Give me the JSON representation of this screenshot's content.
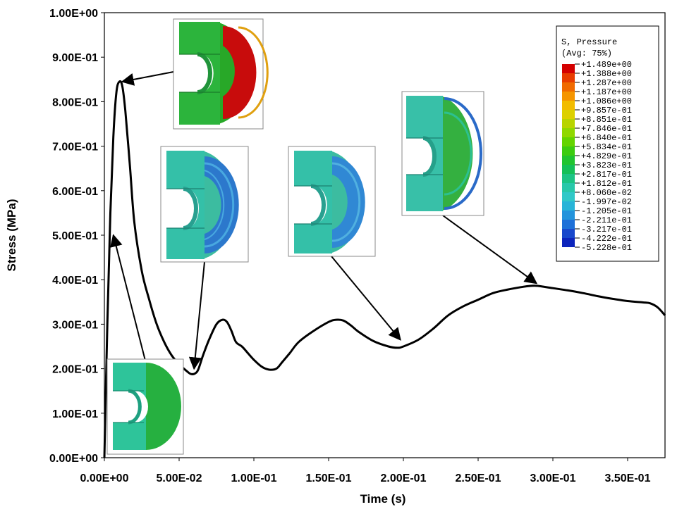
{
  "chart_data": {
    "type": "line",
    "title": "",
    "xlabel": "Time (s)",
    "ylabel": "Stress (MPa)",
    "xlim": [
      0,
      0.375
    ],
    "ylim": [
      0,
      1.0
    ],
    "x_ticks": [
      0,
      0.05,
      0.1,
      0.15,
      0.2,
      0.25,
      0.3,
      0.35
    ],
    "x_tick_labels": [
      "0.00E+00",
      "5.00E-02",
      "1.00E-01",
      "1.50E-01",
      "2.00E-01",
      "2.50E-01",
      "3.00E-01",
      "3.50E-01"
    ],
    "y_ticks": [
      0,
      0.1,
      0.2,
      0.3,
      0.4,
      0.5,
      0.6,
      0.7,
      0.8,
      0.9,
      1.0
    ],
    "y_tick_labels": [
      "0.00E+00",
      "1.00E-01",
      "2.00E-01",
      "3.00E-01",
      "4.00E-01",
      "5.00E-01",
      "6.00E-01",
      "7.00E-01",
      "8.00E-01",
      "9.00E-01",
      "1.00E+00"
    ],
    "grid": false,
    "series": [
      {
        "color": "#000000",
        "x": [
          0,
          0.002,
          0.004,
          0.006,
          0.008,
          0.01,
          0.012,
          0.014,
          0.017,
          0.02,
          0.025,
          0.03,
          0.035,
          0.04,
          0.045,
          0.05,
          0.055,
          0.058,
          0.061,
          0.063,
          0.066,
          0.07,
          0.075,
          0.079,
          0.082,
          0.085,
          0.088,
          0.092,
          0.096,
          0.1,
          0.105,
          0.11,
          0.115,
          0.119,
          0.124,
          0.13,
          0.14,
          0.15,
          0.155,
          0.16,
          0.165,
          0.17,
          0.18,
          0.19,
          0.196,
          0.2,
          0.21,
          0.22,
          0.23,
          0.24,
          0.25,
          0.26,
          0.27,
          0.28,
          0.285,
          0.29,
          0.3,
          0.31,
          0.32,
          0.33,
          0.34,
          0.35,
          0.36,
          0.365,
          0.37,
          0.375
        ],
        "y": [
          0.0,
          0.3,
          0.55,
          0.72,
          0.82,
          0.845,
          0.835,
          0.78,
          0.66,
          0.53,
          0.42,
          0.355,
          0.3,
          0.26,
          0.23,
          0.21,
          0.195,
          0.188,
          0.19,
          0.2,
          0.23,
          0.265,
          0.3,
          0.31,
          0.305,
          0.285,
          0.26,
          0.25,
          0.235,
          0.22,
          0.205,
          0.198,
          0.2,
          0.215,
          0.235,
          0.26,
          0.285,
          0.305,
          0.31,
          0.308,
          0.297,
          0.283,
          0.262,
          0.25,
          0.247,
          0.25,
          0.265,
          0.29,
          0.32,
          0.34,
          0.355,
          0.37,
          0.378,
          0.384,
          0.386,
          0.386,
          0.381,
          0.376,
          0.37,
          0.363,
          0.357,
          0.352,
          0.349,
          0.347,
          0.338,
          0.32
        ]
      }
    ],
    "insets": [
      {
        "name": "inset-initial",
        "kind": "uniform"
      },
      {
        "name": "inset-peak",
        "kind": "red"
      },
      {
        "name": "inset-first-trough",
        "kind": "ringed"
      },
      {
        "name": "inset-second-trough",
        "kind": "ringed"
      },
      {
        "name": "inset-late-peak",
        "kind": "green"
      }
    ],
    "annotations": [
      {
        "name": "arrow-to-peak",
        "from_inset": "inset-peak",
        "to": [
          0.012,
          0.845
        ]
      },
      {
        "name": "arrow-to-rise",
        "from_inset": "inset-initial",
        "to": [
          0.006,
          0.5
        ]
      },
      {
        "name": "arrow-to-first-trough",
        "from_inset": "inset-first-trough",
        "to": [
          0.06,
          0.2
        ]
      },
      {
        "name": "arrow-to-second-trough",
        "from_inset": "inset-second-trough",
        "to": [
          0.198,
          0.265
        ]
      },
      {
        "name": "arrow-to-late-peak",
        "from_inset": "inset-late-peak",
        "to": [
          0.289,
          0.392
        ]
      }
    ],
    "legend": {
      "placement": "top-right",
      "title_line1": "S, Pressure",
      "title_line2": "(Avg: 75%)",
      "entries": [
        "+1.489e+00",
        "+1.388e+00",
        "+1.287e+00",
        "+1.187e+00",
        "+1.086e+00",
        "+9.857e-01",
        "+8.851e-01",
        "+7.846e-01",
        "+6.840e-01",
        "+5.834e-01",
        "+4.829e-01",
        "+3.823e-01",
        "+2.817e-01",
        "+1.812e-01",
        "+8.060e-02",
        "-1.997e-02",
        "-1.205e-01",
        "-2.211e-01",
        "-3.217e-01",
        "-4.222e-01",
        "-5.228e-01"
      ],
      "colors": [
        "#d40000",
        "#e83c00",
        "#f06a00",
        "#f59500",
        "#f2bc00",
        "#dcd000",
        "#b8d400",
        "#90d800",
        "#64d400",
        "#3ccc10",
        "#20c430",
        "#14c058",
        "#1cc484",
        "#28c8aa",
        "#30c8c8",
        "#28b4d8",
        "#2494dc",
        "#1e70d8",
        "#1848cc",
        "#0c24bc",
        "#0000a8"
      ]
    }
  }
}
